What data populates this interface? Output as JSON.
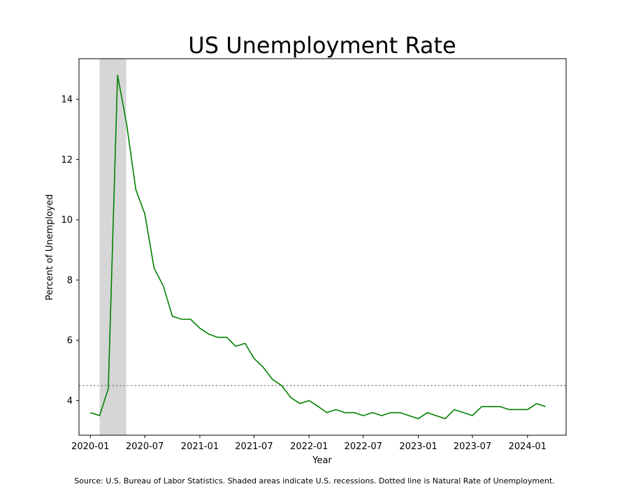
{
  "chart_data": {
    "type": "line",
    "title": "US Unemployment Rate",
    "xlabel": "Year",
    "ylabel": "Percent of Unemployed",
    "xlim": [
      "2019-11-24",
      "2024-05-09"
    ],
    "ylim": [
      2.85,
      15.35
    ],
    "x_ticks": [
      "2020-01",
      "2020-07",
      "2021-01",
      "2021-07",
      "2022-01",
      "2022-07",
      "2023-01",
      "2023-07",
      "2024-01"
    ],
    "y_ticks": [
      4,
      6,
      8,
      10,
      12,
      14
    ],
    "grid": false,
    "legend": "none",
    "colors": {
      "line": "#008000",
      "recession": "#d6d6d6",
      "natural_rate": "#808080"
    },
    "recession": {
      "start": "2020-02-01",
      "end": "2020-04-30"
    },
    "natural_rate": 4.5,
    "series": [
      {
        "x": [
          "2020-01",
          "2020-02",
          "2020-03",
          "2020-04",
          "2020-05",
          "2020-06",
          "2020-07",
          "2020-08",
          "2020-09",
          "2020-10",
          "2020-11",
          "2020-12",
          "2021-01",
          "2021-02",
          "2021-03",
          "2021-04",
          "2021-05",
          "2021-06",
          "2021-07",
          "2021-08",
          "2021-09",
          "2021-10",
          "2021-11",
          "2021-12",
          "2022-01",
          "2022-02",
          "2022-03",
          "2022-04",
          "2022-05",
          "2022-06",
          "2022-07",
          "2022-08",
          "2022-09",
          "2022-10",
          "2022-11",
          "2022-12",
          "2023-01",
          "2023-02",
          "2023-03",
          "2023-04",
          "2023-05",
          "2023-06",
          "2023-07",
          "2023-08",
          "2023-09",
          "2023-10",
          "2023-11",
          "2023-12",
          "2024-01",
          "2024-02",
          "2024-03"
        ],
        "values": [
          3.6,
          3.5,
          4.4,
          14.8,
          13.2,
          11.0,
          10.2,
          8.4,
          7.8,
          6.8,
          6.7,
          6.7,
          6.4,
          6.2,
          6.1,
          6.1,
          5.8,
          5.9,
          5.4,
          5.1,
          4.7,
          4.5,
          4.1,
          3.9,
          4.0,
          3.8,
          3.6,
          3.7,
          3.6,
          3.6,
          3.5,
          3.6,
          3.5,
          3.6,
          3.6,
          3.5,
          3.4,
          3.6,
          3.5,
          3.4,
          3.7,
          3.6,
          3.5,
          3.8,
          3.8,
          3.8,
          3.7,
          3.7,
          3.7,
          3.9,
          3.8
        ]
      }
    ]
  },
  "footnote": "Source: U.S. Bureau of Labor Statistics. Shaded areas indicate U.S. recessions. Dotted line is Natural Rate of Unemployment."
}
